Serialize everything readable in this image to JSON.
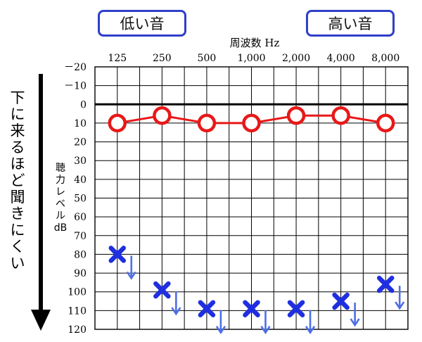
{
  "labels": {
    "low_sound": "低い音",
    "high_sound": "高い音",
    "frequency_title": "周波数 Hz",
    "hearing_level_lines": [
      "聴",
      "力",
      "レ",
      "ベ",
      "ル",
      "dB"
    ],
    "harder_to_hear": "下に来るほど聞きにくい"
  },
  "colors": {
    "air_conduction": "#e81818",
    "marker_x": "#1f2fe0",
    "arrow": "#4d6fe6",
    "grid": "#000000",
    "badge_border": "#2e3fc9"
  },
  "chart_data": {
    "type": "line",
    "title": "",
    "xlabel": "周波数 Hz",
    "ylabel": "聴力レベル dB",
    "categories": [
      "125",
      "250",
      "500",
      "1,000",
      "2,000",
      "4,000",
      "8,000"
    ],
    "y_ticks": [
      "－20",
      "－10",
      "0",
      "10",
      "20",
      "30",
      "40",
      "50",
      "60",
      "70",
      "80",
      "90",
      "100",
      "110",
      "120"
    ],
    "ylim": [
      -20,
      120
    ],
    "y_inverted": true,
    "grid": true,
    "series": [
      {
        "marker": "circle",
        "values": [
          10,
          6,
          10,
          10,
          6,
          6,
          10
        ],
        "connected": true
      },
      {
        "marker": "x-with-down-arrow",
        "values": [
          80,
          99,
          109,
          109,
          109,
          105,
          96
        ],
        "connected": false
      }
    ]
  }
}
